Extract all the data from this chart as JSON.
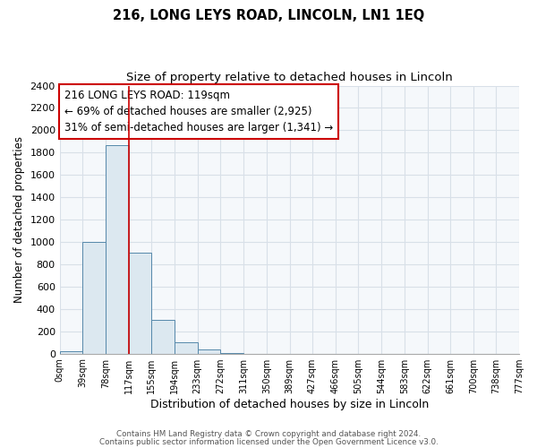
{
  "title": "216, LONG LEYS ROAD, LINCOLN, LN1 1EQ",
  "subtitle": "Size of property relative to detached houses in Lincoln",
  "xlabel": "Distribution of detached houses by size in Lincoln",
  "ylabel": "Number of detached properties",
  "bar_heights": [
    20,
    1000,
    1870,
    900,
    300,
    100,
    40,
    5,
    0,
    0,
    0,
    0,
    0,
    0,
    0,
    0,
    0,
    0,
    0,
    0
  ],
  "bin_edges": [
    0,
    39,
    78,
    117,
    155,
    194,
    233,
    272,
    311,
    350,
    389,
    427,
    466,
    505,
    544,
    583,
    622,
    661,
    700,
    738,
    777
  ],
  "bar_color": "#dce8f0",
  "bar_edgecolor": "#5588aa",
  "vline_x": 117,
  "vline_color": "#cc0000",
  "ylim": [
    0,
    2400
  ],
  "yticks": [
    0,
    200,
    400,
    600,
    800,
    1000,
    1200,
    1400,
    1600,
    1800,
    2000,
    2200,
    2400
  ],
  "annotation_text": "216 LONG LEYS ROAD: 119sqm\n← 69% of detached houses are smaller (2,925)\n31% of semi-detached houses are larger (1,341) →",
  "annotation_box_edgecolor": "#cc0000",
  "footer_line1": "Contains HM Land Registry data © Crown copyright and database right 2024.",
  "footer_line2": "Contains public sector information licensed under the Open Government Licence v3.0.",
  "background_color": "#ffffff",
  "plot_bg_color": "#f5f8fb",
  "grid_color": "#d8e0e8",
  "title_fontsize": 10.5,
  "subtitle_fontsize": 9.5,
  "tick_label_fontsize": 7,
  "ylabel_fontsize": 8.5,
  "xlabel_fontsize": 9
}
